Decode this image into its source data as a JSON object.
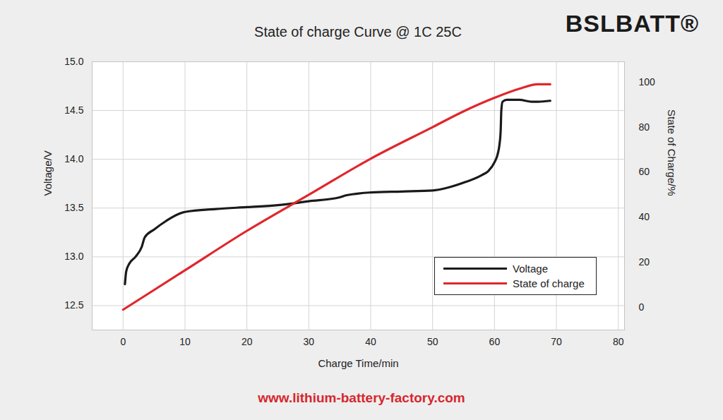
{
  "chart_data": {
    "type": "line",
    "title": "State of charge Curve @ 1C 25C",
    "logo": "BSLBATT®",
    "caption": "www.lithium-battery-factory.com",
    "x_label": "Charge Time/min",
    "y_label": "Voltage/V",
    "y2_label": "State of Charge/%",
    "xlim": [
      -5,
      81
    ],
    "xticks": [
      0,
      10,
      20,
      30,
      40,
      50,
      60,
      70,
      80
    ],
    "ylim": [
      12.25,
      15.0
    ],
    "yticks": [
      12.5,
      {
        "value": 13,
        "label": "13.0"
      },
      13.5,
      {
        "value": 14,
        "label": "14.0"
      },
      14.5,
      {
        "value": 15,
        "label": "15.0"
      }
    ],
    "y2lim": [
      -10,
      109
    ],
    "y2ticks": [
      0,
      20,
      40,
      60,
      80,
      100
    ],
    "grid": true,
    "legend": "lower right",
    "series": [
      {
        "name": "Voltage",
        "color": "#1a1a1a",
        "type": "line",
        "line_style": "solid",
        "x": [
          0.3,
          0.5,
          1,
          2,
          3,
          3.5,
          5,
          7,
          9,
          10,
          15,
          20,
          25,
          30,
          35,
          36,
          40,
          45,
          50,
          55,
          58,
          59,
          60,
          60.5,
          60.8,
          61,
          61.1,
          61.3,
          62,
          64,
          66,
          67,
          69
        ],
        "values": [
          12.72,
          12.85,
          12.93,
          13.0,
          13.1,
          13.2,
          13.28,
          13.37,
          13.44,
          13.46,
          13.49,
          13.51,
          13.53,
          13.57,
          13.61,
          13.63,
          13.66,
          13.67,
          13.68,
          13.76,
          13.84,
          13.88,
          13.97,
          14.05,
          14.15,
          14.3,
          14.5,
          14.59,
          14.61,
          14.61,
          14.59,
          14.59,
          14.6
        ]
      },
      {
        "name": "State of charge",
        "color": "#e0262b",
        "type": "line",
        "line_style": "solid",
        "axis": "y2",
        "x": [
          0,
          10,
          20,
          30,
          40,
          50,
          55,
          60,
          64,
          67,
          69
        ],
        "values": [
          -1,
          16.5,
          34,
          50,
          66,
          80,
          87,
          93,
          97,
          99,
          99
        ]
      }
    ]
  }
}
